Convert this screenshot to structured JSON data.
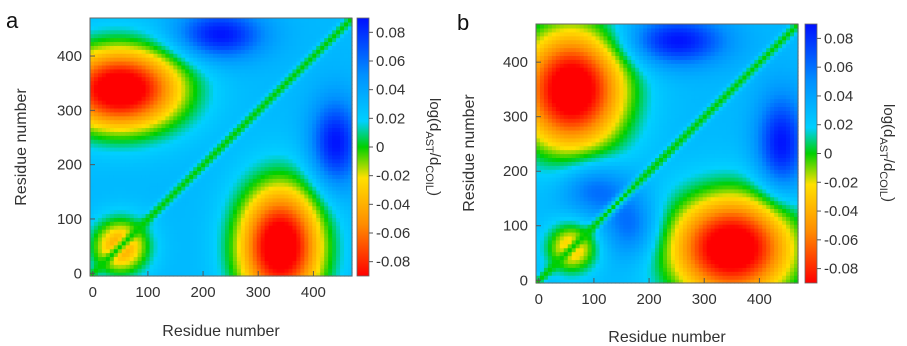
{
  "figure": {
    "panels": [
      "a",
      "b"
    ]
  },
  "chart_data": [
    {
      "type": "heatmap",
      "panel": "a",
      "title": "",
      "xlabel": "Residue number",
      "ylabel": "Residue number",
      "xlim": [
        -5,
        470
      ],
      "ylim": [
        -5,
        470
      ],
      "xticks": [
        "0",
        "100",
        "200",
        "300",
        "400"
      ],
      "yticks": [
        "0",
        "100",
        "200",
        "300",
        "400"
      ],
      "colorbar": {
        "title_main": "log(d",
        "title_sub1": "AST",
        "title_mid": "/d",
        "title_sub2": "COIL",
        "title_end": ")",
        "range": [
          -0.09,
          0.09
        ],
        "ticks": [
          "0.08",
          "0.06",
          "0.04",
          "0.02",
          "0",
          "-0.02",
          "-0.04",
          "-0.06",
          "-0.08"
        ],
        "colormap": [
          "#ff0000",
          "#ff8c00",
          "#ffe000",
          "#00d000",
          "#00d0ff",
          "#0090ff",
          "#0010ff"
        ]
      },
      "structure": {
        "negative_regions": [
          {
            "x": 50,
            "y": 340,
            "sx": 110,
            "sy": 75,
            "amp": 1.0
          },
          {
            "x": 340,
            "y": 50,
            "sx": 75,
            "sy": 110,
            "amp": 1.0
          },
          {
            "x": 50,
            "y": 50,
            "sx": 50,
            "sy": 50,
            "amp": 0.55
          }
        ],
        "positive_regions": [
          {
            "x": 230,
            "y": 440,
            "sx": 80,
            "sy": 45,
            "amp": 1.0
          },
          {
            "x": 440,
            "y": 240,
            "sx": 45,
            "sy": 80,
            "amp": 1.0
          }
        ],
        "diagonal_value": 0.0
      }
    },
    {
      "type": "heatmap",
      "panel": "b",
      "title": "",
      "xlabel": "Residue number",
      "ylabel": "Residue number",
      "xlim": [
        -5,
        470
      ],
      "ylim": [
        -5,
        470
      ],
      "xticks": [
        "0",
        "100",
        "200",
        "300",
        "400"
      ],
      "yticks": [
        "0",
        "100",
        "200",
        "300",
        "400"
      ],
      "colorbar": {
        "title_main": "log(d",
        "title_sub1": "AST",
        "title_mid": "/d",
        "title_sub2": "COIL",
        "title_end": ")",
        "range": [
          -0.09,
          0.09
        ],
        "ticks": [
          "0.08",
          "0.06",
          "0.04",
          "0.02",
          "0",
          "-0.02",
          "-0.04",
          "-0.06",
          "-0.08"
        ],
        "colormap": [
          "#ff0000",
          "#ff8c00",
          "#ffe000",
          "#00d000",
          "#00d0ff",
          "#0090ff",
          "#0010ff"
        ]
      },
      "structure": {
        "negative_regions": [
          {
            "x": 60,
            "y": 350,
            "sx": 95,
            "sy": 110,
            "amp": 1.0
          },
          {
            "x": 350,
            "y": 60,
            "sx": 110,
            "sy": 95,
            "amp": 1.0
          },
          {
            "x": 60,
            "y": 60,
            "sx": 45,
            "sy": 45,
            "amp": 0.45
          }
        ],
        "positive_regions": [
          {
            "x": 250,
            "y": 440,
            "sx": 90,
            "sy": 45,
            "amp": 1.0
          },
          {
            "x": 440,
            "y": 250,
            "sx": 45,
            "sy": 90,
            "amp": 1.0
          },
          {
            "x": 100,
            "y": 170,
            "sx": 60,
            "sy": 50,
            "amp": 0.6
          },
          {
            "x": 170,
            "y": 100,
            "sx": 50,
            "sy": 60,
            "amp": 0.6
          }
        ],
        "diagonal_value": 0.0
      }
    }
  ]
}
